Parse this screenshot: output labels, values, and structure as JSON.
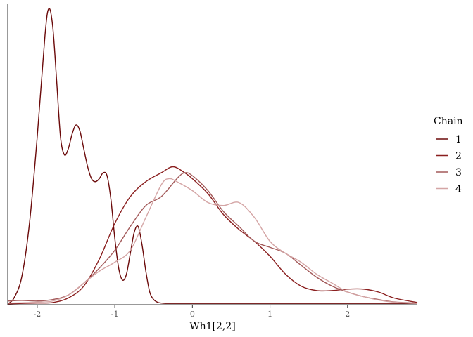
{
  "chart_data": {
    "type": "line",
    "title": "",
    "xlabel": "Wh1[2,2]",
    "ylabel": "",
    "xlim": [
      -2.38,
      2.9
    ],
    "ylim": [
      0,
      1.0
    ],
    "x_ticks": [
      -2,
      -1,
      0,
      1,
      2
    ],
    "x_tick_labels": [
      "-2",
      "-1",
      "0",
      "1",
      "2"
    ],
    "y_axis_ticks_shown": false,
    "grid": false,
    "legend": {
      "title": "Chain",
      "position": "right"
    },
    "series": [
      {
        "name": "1",
        "color": "#6b0a0a",
        "x": [
          -2.38,
          -2.3,
          -2.2,
          -2.1,
          -2.0,
          -1.9,
          -1.85,
          -1.8,
          -1.75,
          -1.7,
          -1.65,
          -1.6,
          -1.55,
          -1.5,
          -1.45,
          -1.4,
          -1.35,
          -1.3,
          -1.25,
          -1.2,
          -1.15,
          -1.1,
          -1.05,
          -1.0,
          -0.95,
          -0.9,
          -0.85,
          -0.8,
          -0.75,
          -0.7,
          -0.65,
          -0.6,
          -0.55,
          -0.5,
          -0.45,
          -0.4,
          -0.35,
          -0.3,
          -0.25,
          -0.2,
          -0.1,
          0.0,
          0.2,
          0.5,
          1.0,
          2.0,
          2.9
        ],
        "y": [
          0.0,
          0.02,
          0.09,
          0.27,
          0.56,
          0.9,
          0.99,
          0.93,
          0.75,
          0.56,
          0.5,
          0.52,
          0.57,
          0.6,
          0.58,
          0.52,
          0.46,
          0.42,
          0.41,
          0.42,
          0.44,
          0.43,
          0.35,
          0.22,
          0.12,
          0.08,
          0.1,
          0.17,
          0.24,
          0.26,
          0.2,
          0.11,
          0.04,
          0.015,
          0.006,
          0.003,
          0.002,
          0.002,
          0.002,
          0.002,
          0.002,
          0.002,
          0.002,
          0.002,
          0.002,
          0.002,
          0.002
        ]
      },
      {
        "name": "2",
        "color": "#8a1f1f",
        "x": [
          -2.38,
          -2.2,
          -2.0,
          -1.8,
          -1.6,
          -1.4,
          -1.2,
          -1.0,
          -0.8,
          -0.6,
          -0.4,
          -0.25,
          -0.1,
          0.0,
          0.2,
          0.4,
          0.6,
          0.8,
          1.0,
          1.2,
          1.4,
          1.6,
          1.8,
          2.0,
          2.2,
          2.4,
          2.6,
          2.9
        ],
        "y": [
          0.0,
          0.002,
          0.003,
          0.005,
          0.02,
          0.06,
          0.15,
          0.27,
          0.36,
          0.41,
          0.44,
          0.46,
          0.44,
          0.42,
          0.37,
          0.3,
          0.25,
          0.21,
          0.16,
          0.1,
          0.06,
          0.045,
          0.045,
          0.05,
          0.05,
          0.04,
          0.02,
          0.005
        ]
      },
      {
        "name": "3",
        "color": "#a35a5a",
        "x": [
          -2.38,
          -2.2,
          -2.0,
          -1.8,
          -1.6,
          -1.4,
          -1.2,
          -1.0,
          -0.8,
          -0.6,
          -0.4,
          -0.2,
          -0.1,
          0.0,
          0.2,
          0.4,
          0.6,
          0.8,
          1.0,
          1.2,
          1.4,
          1.6,
          1.8,
          2.0,
          2.2,
          2.4,
          2.6,
          2.9
        ],
        "y": [
          0.01,
          0.012,
          0.01,
          0.015,
          0.03,
          0.07,
          0.12,
          0.18,
          0.26,
          0.33,
          0.36,
          0.42,
          0.44,
          0.43,
          0.38,
          0.31,
          0.26,
          0.21,
          0.19,
          0.17,
          0.13,
          0.09,
          0.06,
          0.04,
          0.025,
          0.015,
          0.007,
          0.003
        ]
      },
      {
        "name": "4",
        "color": "#d4a5a5",
        "x": [
          -2.38,
          -2.2,
          -2.0,
          -1.8,
          -1.6,
          -1.4,
          -1.2,
          -1.0,
          -0.8,
          -0.6,
          -0.4,
          -0.3,
          -0.2,
          0.0,
          0.2,
          0.4,
          0.6,
          0.8,
          1.0,
          1.2,
          1.4,
          1.6,
          1.8,
          2.0,
          2.2,
          2.4,
          2.6,
          2.9
        ],
        "y": [
          0.003,
          0.004,
          0.006,
          0.01,
          0.03,
          0.07,
          0.11,
          0.14,
          0.18,
          0.29,
          0.4,
          0.42,
          0.41,
          0.38,
          0.34,
          0.33,
          0.34,
          0.29,
          0.21,
          0.17,
          0.14,
          0.1,
          0.07,
          0.04,
          0.025,
          0.013,
          0.006,
          0.002
        ]
      }
    ]
  }
}
